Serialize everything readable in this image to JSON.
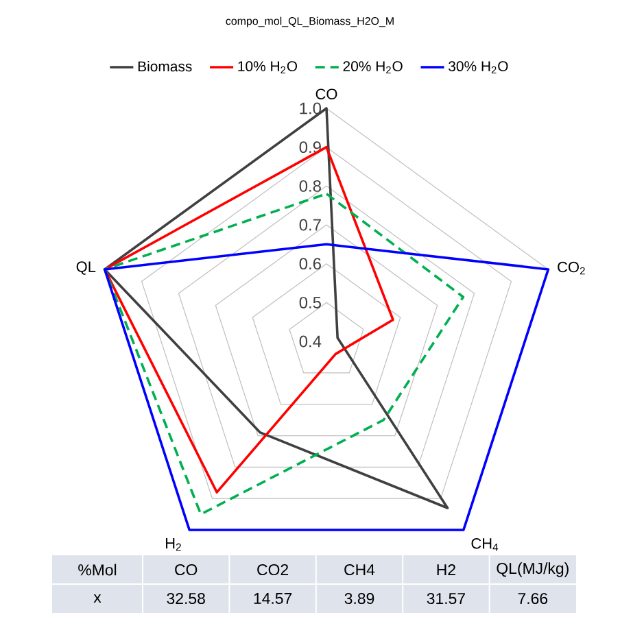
{
  "chart_data": [
    {
      "type": "radar",
      "title": "compo_mol_QL_Biomass_H2O_M",
      "categories": [
        "CO",
        "CO$_{2}$",
        "CH$_{4}$",
        "H$_{2}$",
        "QL"
      ],
      "ylim": [
        0.4,
        1.0
      ],
      "yticks": [
        0.4,
        0.5,
        0.6,
        0.7,
        0.8,
        0.9,
        {
          "value": 1,
          "label": "1.0"
        }
      ],
      "grid": true,
      "legend": "top",
      "marker": "none",
      "series": [
        {
          "name": "Biomass",
          "color": "#404040",
          "line_style": "solid",
          "values": [
            1.0,
            0.43,
            0.93,
            0.69,
            1.0
          ]
        },
        {
          "name": "10% H$_{2}$O",
          "color": "#ff0000",
          "line_style": "solid",
          "values": [
            0.9,
            0.58,
            0.44,
            0.88,
            1.0
          ]
        },
        {
          "name": "20% H$_{2}$O",
          "color": "#00b050",
          "line_style": "dashed",
          "values": [
            0.78,
            0.77,
            0.65,
            0.95,
            1.0
          ]
        },
        {
          "name": "30% H$_{2}$O",
          "color": "#0000ff",
          "line_style": "solid",
          "values": [
            0.65,
            1.0,
            1.0,
            1.0,
            1.0
          ]
        }
      ]
    },
    {
      "type": "other",
      "annotations": [
        "%Mol",
        "x"
      ],
      "categories": [
        "CO",
        "CO2",
        "CH4",
        "H2",
        "QL(MJ/kg)"
      ],
      "values": [
        32.58,
        14.57,
        3.89,
        31.57,
        7.66
      ],
      "data_labels": true
    }
  ]
}
